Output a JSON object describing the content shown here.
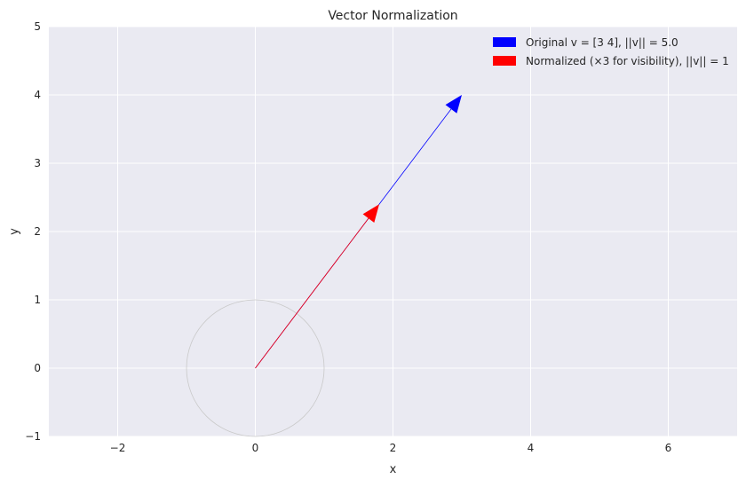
{
  "chart_data": {
    "type": "vector",
    "title": "Vector Normalization",
    "xlabel": "x",
    "ylabel": "y",
    "xlim": [
      -3,
      7
    ],
    "ylim": [
      -1,
      5
    ],
    "xticks": [
      -2,
      0,
      2,
      4,
      6
    ],
    "xtick_labels": [
      "−2",
      "0",
      "2",
      "4",
      "6"
    ],
    "yticks": [
      -1,
      0,
      1,
      2,
      3,
      4,
      5
    ],
    "ytick_labels": [
      "−1",
      "0",
      "1",
      "2",
      "3",
      "4",
      "5"
    ],
    "grid": true,
    "legend_position": "top-right",
    "unit_circle": {
      "center": [
        0,
        0
      ],
      "radius": 1
    },
    "series": [
      {
        "name": "Original v = [3 4], ||v|| = 5.0",
        "color": "#0000ff",
        "start": [
          0,
          0
        ],
        "end": [
          3,
          4
        ]
      },
      {
        "name": "Normalized (×3 for visibility), ||v|| = 1",
        "color": "#ff0000",
        "start": [
          0,
          0
        ],
        "end": [
          1.8,
          2.4
        ]
      }
    ]
  }
}
